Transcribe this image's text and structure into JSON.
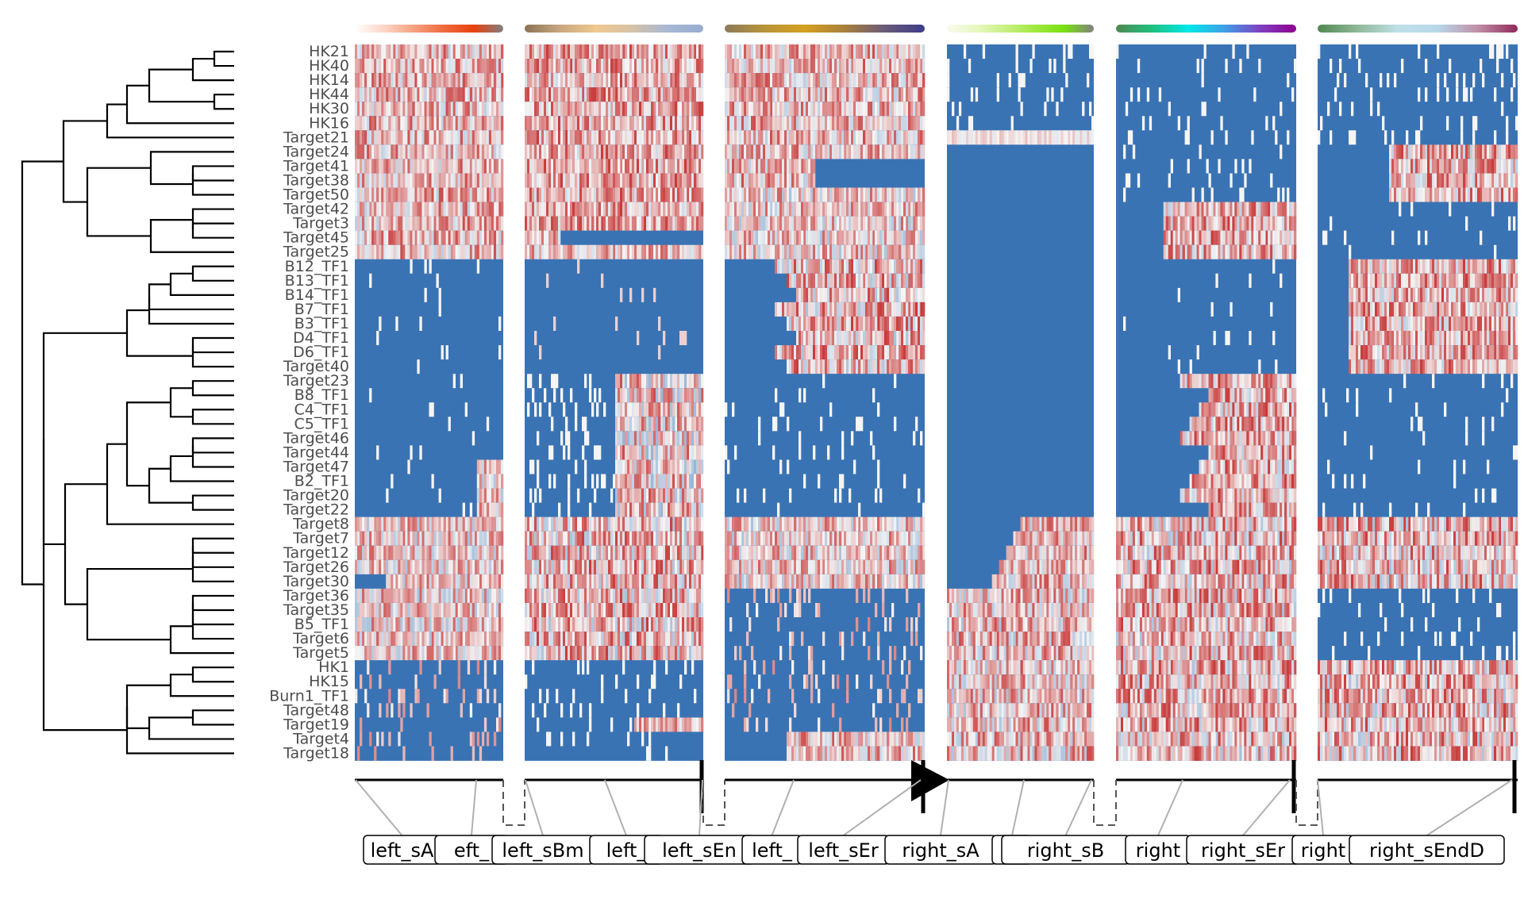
{
  "chart_data": {
    "type": "heatmap",
    "title": "",
    "xlabel": "",
    "ylabel": "",
    "rows": [
      "HK21",
      "HK40",
      "HK14",
      "HK44",
      "HK30",
      "HK16",
      "Target21",
      "Target24",
      "Target41",
      "Target38",
      "Target50",
      "Target42",
      "Target3",
      "Target45",
      "Target25",
      "B12_TF1",
      "B13_TF1",
      "B14_TF1",
      "B7_TF1",
      "B3_TF1",
      "D4_TF1",
      "D6_TF1",
      "Target40",
      "Target23",
      "B8_TF1",
      "C4_TF1",
      "C5_TF1",
      "Target46",
      "Target44",
      "Target47",
      "B2_TF1",
      "Target20",
      "Target22",
      "Target8",
      "Target7",
      "Target12",
      "Target26",
      "Target30",
      "Target36",
      "Target35",
      "B5_TF1",
      "Target6",
      "Target5",
      "HK1",
      "HK15",
      "Burn1_TF1",
      "Target48",
      "Target19",
      "Target4",
      "Target18"
    ],
    "column_groups": [
      {
        "colors": [
          "#ffffff",
          "#fcd5c5",
          "#f6a07f",
          "#ef6a3e",
          "#e8420e",
          "#808080"
        ]
      },
      {
        "colors": [
          "#8c7355",
          "#c9a880",
          "#f0c890",
          "#d6c2a6",
          "#a8b8d4",
          "#98acd0"
        ]
      },
      {
        "colors": [
          "#8c7a5a",
          "#b89438",
          "#d4a020",
          "#a8803c",
          "#6a5a78",
          "#3c3c8c"
        ]
      },
      {
        "colors": [
          "#fafaf0",
          "#e8f8c0",
          "#c8f080",
          "#a0e840",
          "#78e010",
          "#808080"
        ]
      },
      {
        "colors": [
          "#508850",
          "#20c080",
          "#00e8e8",
          "#40a0e8",
          "#8040c0",
          "#900090"
        ]
      },
      {
        "colors": [
          "#508850",
          "#90b898",
          "#c0e0e8",
          "#b8d8e8",
          "#c090a8",
          "#902858"
        ]
      }
    ],
    "heatmap_palette": {
      "low": "#3a73b3",
      "mid": "#f5f5f5",
      "high": "#c83a3a"
    },
    "branch_labels": [
      "left_sA",
      "left_sB",
      "left_sBmid",
      "left_sC",
      "left_sEnd",
      "left_sD",
      "left_sEmid",
      "right_sA",
      "right_sB",
      "right_sBmid",
      "right_sC",
      "right_sEnd",
      "right_sD",
      "right_sEndD"
    ],
    "visible_branch_labels": [
      "left_sA",
      "eft_",
      "left_sBm",
      "left_",
      "left_sEn",
      "left_",
      "left_sEr",
      "right_sA",
      "h",
      "right_sB",
      "right",
      "right_sEr",
      "right",
      "right_sEndD"
    ],
    "tree": {
      "type": "dendrogram",
      "leaf_order": "rows"
    }
  }
}
